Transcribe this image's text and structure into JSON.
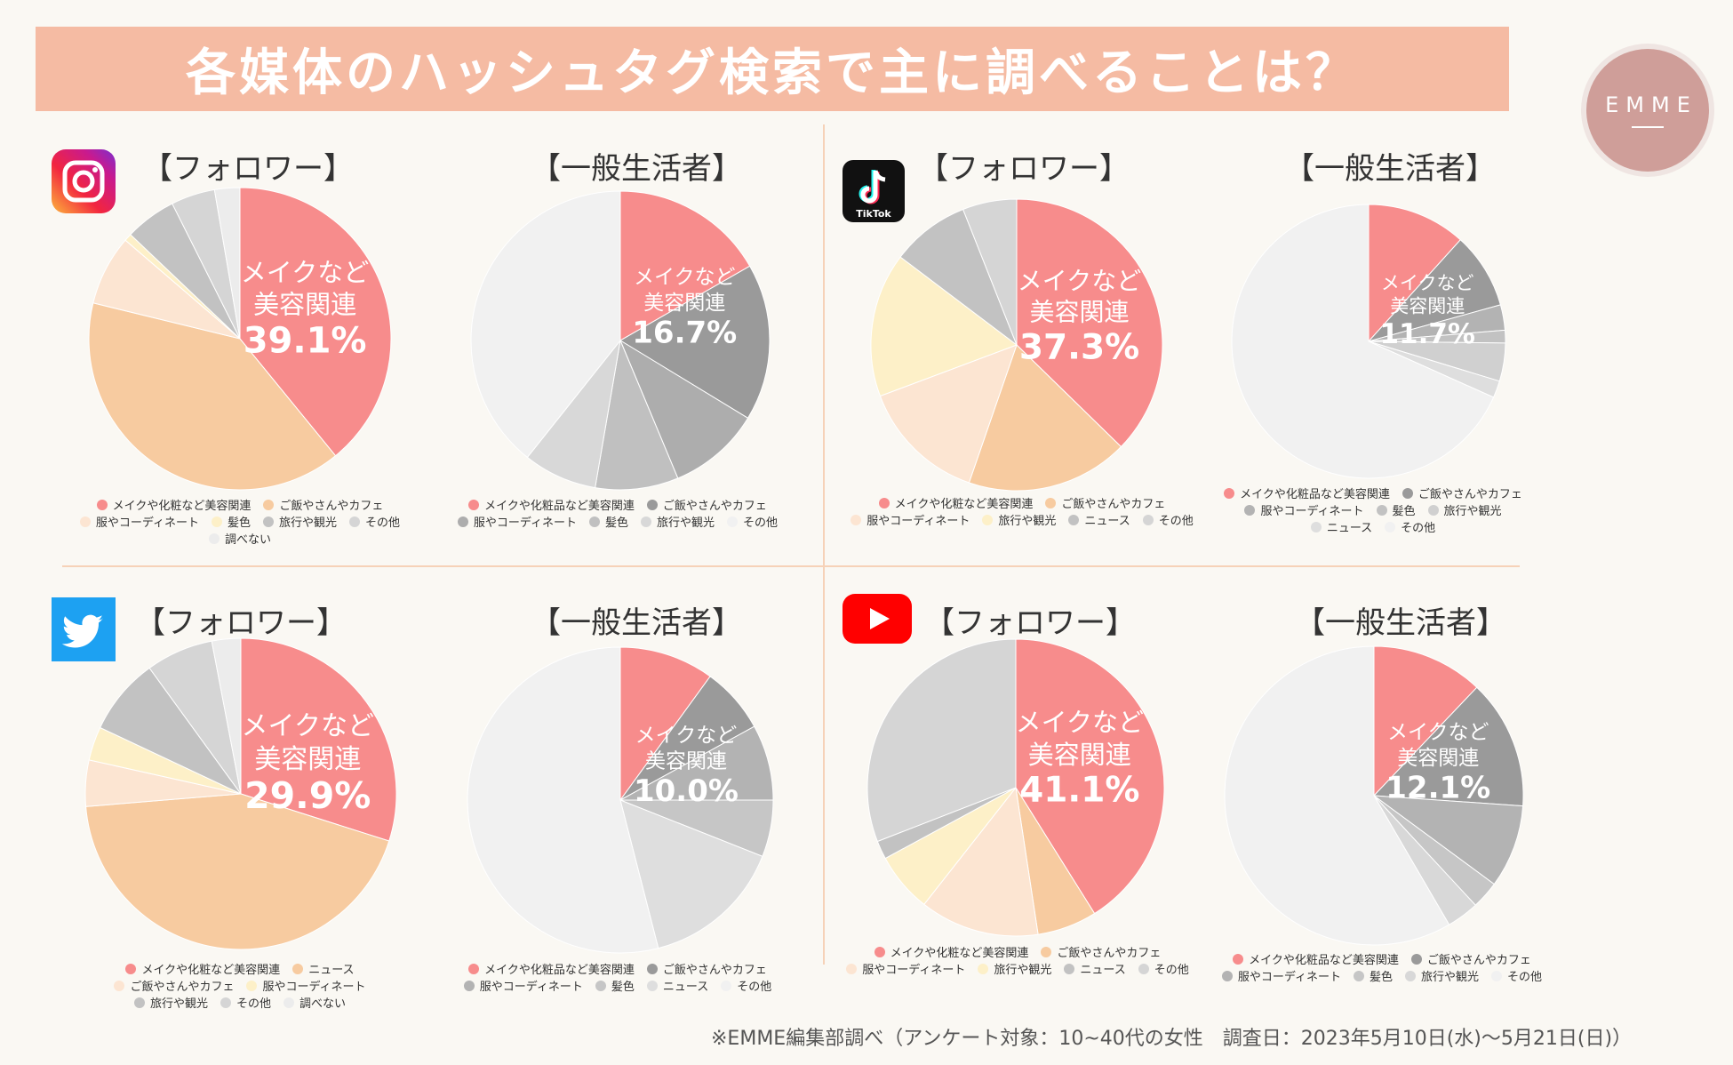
{
  "title": "各媒体のハッシュタグ検索で主に調べることは？",
  "logo_text": "EMME",
  "footnote": "※EMME編集部調べ（アンケート対象：10~40代の女性　調査日：2023年5月10日(水)〜5月21日(日)）",
  "panels": {
    "instagram": {
      "title_follower": "【フォロワー】",
      "title_general": "【一般生活者】"
    },
    "tiktok": {
      "title_follower": "【フォロワー】",
      "title_general": "【一般生活者】",
      "icon_label": "TikTok"
    },
    "twitter": {
      "title_follower": "【フォロワー】",
      "title_general": "【一般生活者】"
    },
    "youtube": {
      "title_follower": "【フォロワー】",
      "title_general": "【一般生活者】"
    }
  },
  "colors": {
    "beauty": "#f78c8c",
    "food": "#f7cba0",
    "fashion": "#fce5d2",
    "hair": "#fdf0c8",
    "news": "#c9c9c9",
    "travel": "#bdbdbd",
    "other": "#d7d7d7",
    "none": "#ececec"
  },
  "chart_data": [
    {
      "id": "instagram-follower",
      "type": "pie",
      "label_lines": [
        "メイクなど",
        "美容関連",
        "39.1%"
      ],
      "slices": [
        {
          "name": "メイクや化粧など美容関連",
          "value": 39.1,
          "color": "#f78c8c"
        },
        {
          "name": "ご飯やさんやカフェ",
          "value": 39.7,
          "color": "#f7cba0"
        },
        {
          "name": "服やコーディネート",
          "value": 7.5,
          "color": "#fce5d2"
        },
        {
          "name": "髪色",
          "value": 0.8,
          "color": "#fdf0c8"
        },
        {
          "name": "旅行や観光",
          "value": 5.5,
          "color": "#c2c2c2"
        },
        {
          "name": "その他",
          "value": 4.7,
          "color": "#d5d5d5"
        },
        {
          "name": "調べない",
          "value": 2.7,
          "color": "#ececec"
        }
      ],
      "legend": [
        {
          "name": "メイクや化粧など美容関連",
          "color": "#f78c8c"
        },
        {
          "name": "ご飯やさんやカフェ",
          "color": "#f7cba0"
        },
        {
          "name": "服やコーディネート",
          "color": "#fce5d2"
        },
        {
          "name": "髪色",
          "color": "#fdf0c8"
        },
        {
          "name": "旅行や観光",
          "color": "#c2c2c2"
        },
        {
          "name": "その他",
          "color": "#d5d5d5"
        },
        {
          "name": "調べない",
          "color": "#ececec"
        }
      ]
    },
    {
      "id": "instagram-general",
      "type": "pie",
      "label_lines": [
        "メイクなど",
        "美容関連",
        "16.7%"
      ],
      "slices": [
        {
          "name": "メイクや化粧品など美容関連",
          "value": 16.7,
          "color": "#f78c8c"
        },
        {
          "name": "ご飯やさんやカフェ",
          "value": 17.0,
          "color": "#9a9a9a"
        },
        {
          "name": "服やコーディネート",
          "value": 10.0,
          "color": "#adadad"
        },
        {
          "name": "髪色",
          "value": 9.0,
          "color": "#c0c0c0"
        },
        {
          "name": "旅行や観光",
          "value": 8.0,
          "color": "#d8d8d8"
        },
        {
          "name": "その他",
          "value": 39.3,
          "color": "#f1f1f1"
        }
      ],
      "legend": [
        {
          "name": "メイクや化粧品など美容関連",
          "color": "#f78c8c"
        },
        {
          "name": "ご飯やさんやカフェ",
          "color": "#9a9a9a"
        },
        {
          "name": "服やコーディネート",
          "color": "#adadad"
        },
        {
          "name": "髪色",
          "color": "#c0c0c0"
        },
        {
          "name": "旅行や観光",
          "color": "#d8d8d8"
        },
        {
          "name": "その他",
          "color": "#f1f1f1"
        }
      ]
    },
    {
      "id": "tiktok-follower",
      "type": "pie",
      "label_lines": [
        "メイクなど",
        "美容関連",
        "37.3%"
      ],
      "slices": [
        {
          "name": "メイクや化粧など美容関連",
          "value": 37.3,
          "color": "#f78c8c"
        },
        {
          "name": "ご飯やさんやカフェ",
          "value": 18.0,
          "color": "#f7cba0"
        },
        {
          "name": "服やコーディネート",
          "value": 14.0,
          "color": "#fce5d2"
        },
        {
          "name": "旅行や観光",
          "value": 16.0,
          "color": "#fdf0c8"
        },
        {
          "name": "ニュース",
          "value": 8.7,
          "color": "#c2c2c2"
        },
        {
          "name": "その他",
          "value": 6.0,
          "color": "#d5d5d5"
        }
      ],
      "legend": [
        {
          "name": "メイクや化粧など美容関連",
          "color": "#f78c8c"
        },
        {
          "name": "ご飯やさんやカフェ",
          "color": "#f7cba0"
        },
        {
          "name": "服やコーディネート",
          "color": "#fce5d2"
        },
        {
          "name": "旅行や観光",
          "color": "#fdf0c8"
        },
        {
          "name": "ニュース",
          "color": "#c2c2c2"
        },
        {
          "name": "その他",
          "color": "#d5d5d5"
        }
      ]
    },
    {
      "id": "tiktok-general",
      "type": "pie",
      "label_lines": [
        "メイクなど",
        "美容関連",
        "11.7%"
      ],
      "slices": [
        {
          "name": "メイクや化粧品など美容関連",
          "value": 11.7,
          "color": "#f78c8c"
        },
        {
          "name": "ご飯やさんやカフェ",
          "value": 9.0,
          "color": "#9a9a9a"
        },
        {
          "name": "服やコーディネート",
          "value": 3.0,
          "color": "#b3b3b3"
        },
        {
          "name": "髪色",
          "value": 1.5,
          "color": "#c2c2c2"
        },
        {
          "name": "旅行や観光",
          "value": 4.5,
          "color": "#d0d0d0"
        },
        {
          "name": "ニュース",
          "value": 2.0,
          "color": "#dedede"
        },
        {
          "name": "その他",
          "value": 68.3,
          "color": "#f1f1f1"
        }
      ],
      "legend": [
        {
          "name": "メイクや化粧品など美容関連",
          "color": "#f78c8c"
        },
        {
          "name": "ご飯やさんやカフェ",
          "color": "#9a9a9a"
        },
        {
          "name": "服やコーディネート",
          "color": "#b3b3b3"
        },
        {
          "name": "髪色",
          "color": "#c2c2c2"
        },
        {
          "name": "旅行や観光",
          "color": "#d0d0d0"
        },
        {
          "name": "ニュース",
          "color": "#dedede"
        },
        {
          "name": "その他",
          "color": "#f1f1f1"
        }
      ]
    },
    {
      "id": "twitter-follower",
      "type": "pie",
      "label_lines": [
        "メイクなど",
        "美容関連",
        "29.9%"
      ],
      "slices": [
        {
          "name": "メイクや化粧など美容関連",
          "value": 29.9,
          "color": "#f78c8c"
        },
        {
          "name": "ニュース",
          "value": 43.8,
          "color": "#f7cba0"
        },
        {
          "name": "ご飯やさんやカフェ",
          "value": 4.8,
          "color": "#fce5d2"
        },
        {
          "name": "服やコーディネート",
          "value": 3.5,
          "color": "#fdf0c8"
        },
        {
          "name": "旅行や観光",
          "value": 8.0,
          "color": "#c2c2c2"
        },
        {
          "name": "その他",
          "value": 7.0,
          "color": "#d5d5d5"
        },
        {
          "name": "調べない",
          "value": 3.0,
          "color": "#ececec"
        }
      ],
      "legend": [
        {
          "name": "メイクや化粧など美容関連",
          "color": "#f78c8c"
        },
        {
          "name": "ニュース",
          "color": "#f7cba0"
        },
        {
          "name": "ご飯やさんやカフェ",
          "color": "#fce5d2"
        },
        {
          "name": "服やコーディネート",
          "color": "#fdf0c8"
        },
        {
          "name": "旅行や観光",
          "color": "#c2c2c2"
        },
        {
          "name": "その他",
          "color": "#d5d5d5"
        },
        {
          "name": "調べない",
          "color": "#ececec"
        }
      ]
    },
    {
      "id": "twitter-general",
      "type": "pie",
      "label_lines": [
        "メイクなど",
        "美容関連",
        "10.0%"
      ],
      "slices": [
        {
          "name": "メイクや化粧品など美容関連",
          "value": 10.0,
          "color": "#f78c8c"
        },
        {
          "name": "ご飯やさんやカフェ",
          "value": 7.0,
          "color": "#9a9a9a"
        },
        {
          "name": "服やコーディネート",
          "value": 8.0,
          "color": "#b3b3b3"
        },
        {
          "name": "髪色",
          "value": 6.0,
          "color": "#c6c6c6"
        },
        {
          "name": "ニュース",
          "value": 15.0,
          "color": "#dedede"
        },
        {
          "name": "その他",
          "value": 54.0,
          "color": "#f1f1f1"
        }
      ],
      "legend": [
        {
          "name": "メイクや化粧品など美容関連",
          "color": "#f78c8c"
        },
        {
          "name": "ご飯やさんやカフェ",
          "color": "#9a9a9a"
        },
        {
          "name": "服やコーディネート",
          "color": "#b3b3b3"
        },
        {
          "name": "髪色",
          "color": "#c6c6c6"
        },
        {
          "name": "ニュース",
          "color": "#dedede"
        },
        {
          "name": "その他",
          "color": "#f1f1f1"
        }
      ]
    },
    {
      "id": "youtube-follower",
      "type": "pie",
      "label_lines": [
        "メイクなど",
        "美容関連",
        "41.1%"
      ],
      "slices": [
        {
          "name": "メイクや化粧など美容関連",
          "value": 41.1,
          "color": "#f78c8c"
        },
        {
          "name": "ご飯やさんやカフェ",
          "value": 6.5,
          "color": "#f7cba0"
        },
        {
          "name": "服やコーディネート",
          "value": 13.0,
          "color": "#fce5d2"
        },
        {
          "name": "旅行や観光",
          "value": 6.5,
          "color": "#fdf0c8"
        },
        {
          "name": "ニュース",
          "value": 2.0,
          "color": "#c2c2c2"
        },
        {
          "name": "その他",
          "value": 30.9,
          "color": "#d5d5d5"
        }
      ],
      "legend": [
        {
          "name": "メイクや化粧など美容関連",
          "color": "#f78c8c"
        },
        {
          "name": "ご飯やさんやカフェ",
          "color": "#f7cba0"
        },
        {
          "name": "服やコーディネート",
          "color": "#fce5d2"
        },
        {
          "name": "旅行や観光",
          "color": "#fdf0c8"
        },
        {
          "name": "ニュース",
          "color": "#c2c2c2"
        },
        {
          "name": "その他",
          "color": "#d5d5d5"
        }
      ]
    },
    {
      "id": "youtube-general",
      "type": "pie",
      "label_lines": [
        "メイクなど",
        "美容関連",
        "12.1%"
      ],
      "slices": [
        {
          "name": "メイクや化粧品など美容関連",
          "value": 12.1,
          "color": "#f78c8c"
        },
        {
          "name": "ご飯やさんやカフェ",
          "value": 14.0,
          "color": "#9a9a9a"
        },
        {
          "name": "服やコーディネート",
          "value": 9.0,
          "color": "#b3b3b3"
        },
        {
          "name": "髪色",
          "value": 3.0,
          "color": "#c6c6c6"
        },
        {
          "name": "旅行や観光",
          "value": 3.5,
          "color": "#d8d8d8"
        },
        {
          "name": "その他",
          "value": 58.4,
          "color": "#f1f1f1"
        }
      ],
      "legend": [
        {
          "name": "メイクや化粧品など美容関連",
          "color": "#f78c8c"
        },
        {
          "name": "ご飯やさんやカフェ",
          "color": "#9a9a9a"
        },
        {
          "name": "服やコーディネート",
          "color": "#b3b3b3"
        },
        {
          "name": "髪色",
          "color": "#c6c6c6"
        },
        {
          "name": "旅行や観光",
          "color": "#d8d8d8"
        },
        {
          "name": "その他",
          "color": "#f1f1f1"
        }
      ]
    }
  ]
}
